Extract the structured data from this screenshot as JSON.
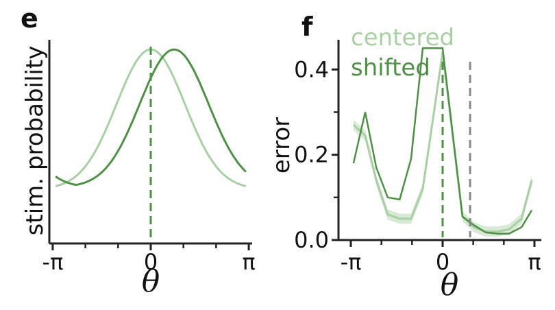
{
  "panels": {
    "e": {
      "label": "e"
    },
    "f": {
      "label": "f"
    }
  },
  "colors": {
    "centered": "#a9cfa4",
    "shifted": "#4f8f46",
    "marker": "#888888",
    "axis": "#222222"
  },
  "chart_data": [
    {
      "type": "line",
      "panel": "e",
      "xlabel": "θ",
      "ylabel": "stim. probability",
      "xlim": [
        -3.25,
        3.25
      ],
      "ylim": [
        0,
        1.05
      ],
      "x_ticks": [
        {
          "value": -3.14159,
          "label": "-π"
        },
        {
          "value": 0,
          "label": "0"
        },
        {
          "value": 3.14159,
          "label": "π"
        }
      ],
      "minor_x_ticks": [
        -2.094,
        -1.047,
        1.047,
        2.094
      ],
      "vlines": [
        {
          "x": 0,
          "color_key": "shifted"
        }
      ],
      "series": [
        {
          "name": "centered",
          "color_key": "centered",
          "mu": 0,
          "sigma": 1.1,
          "base": 0.28,
          "amp": 0.72
        },
        {
          "name": "shifted",
          "color_key": "shifted",
          "mu": 0.75,
          "sigma": 1.1,
          "base": 0.29,
          "amp": 0.71
        }
      ]
    },
    {
      "type": "line",
      "panel": "f",
      "xlabel": "θ",
      "ylabel": "error",
      "xlim": [
        -3.14159,
        3.14159
      ],
      "ylim": [
        0,
        0.46
      ],
      "x_ticks": [
        {
          "value": -3.14159,
          "label": "-π"
        },
        {
          "value": 0,
          "label": "0"
        },
        {
          "value": 3.14159,
          "label": "π"
        }
      ],
      "minor_x_ticks": [
        -2.094,
        -1.047,
        1.047,
        2.094
      ],
      "y_ticks": [
        {
          "value": 0,
          "label": "0.0"
        },
        {
          "value": 0.2,
          "label": "0.2"
        },
        {
          "value": 0.4,
          "label": "0.4"
        }
      ],
      "minor_y_ticks": [
        0.1,
        0.3
      ],
      "vlines": [
        {
          "x": 0,
          "color_key": "shifted"
        },
        {
          "x": 0.94,
          "color_key": "marker"
        }
      ],
      "legend": {
        "position": "top-left",
        "entries": [
          "centered",
          "shifted"
        ]
      },
      "series": [
        {
          "name": "centered",
          "color_key": "centered",
          "x": [
            -3.05,
            -2.65,
            -2.27,
            -1.88,
            -1.47,
            -1.08,
            -0.68,
            0.0,
            0.68,
            1.07,
            1.47,
            1.88,
            2.27,
            2.7,
            3.05
          ],
          "y": [
            0.27,
            0.245,
            0.14,
            0.06,
            0.05,
            0.05,
            0.12,
            0.44,
            0.055,
            0.03,
            0.02,
            0.02,
            0.025,
            0.05,
            0.14
          ],
          "band": 0.012
        },
        {
          "name": "shifted",
          "color_key": "shifted",
          "x": [
            -3.05,
            -2.65,
            -2.27,
            -1.88,
            -1.47,
            -1.08,
            -0.68,
            0.0,
            0.68,
            1.07,
            1.47,
            1.88,
            2.27,
            2.7,
            3.05
          ],
          "y": [
            0.18,
            0.3,
            0.17,
            0.1,
            0.095,
            0.19,
            0.45,
            0.45,
            0.055,
            0.035,
            0.018,
            0.015,
            0.015,
            0.03,
            0.07
          ]
        }
      ]
    }
  ]
}
